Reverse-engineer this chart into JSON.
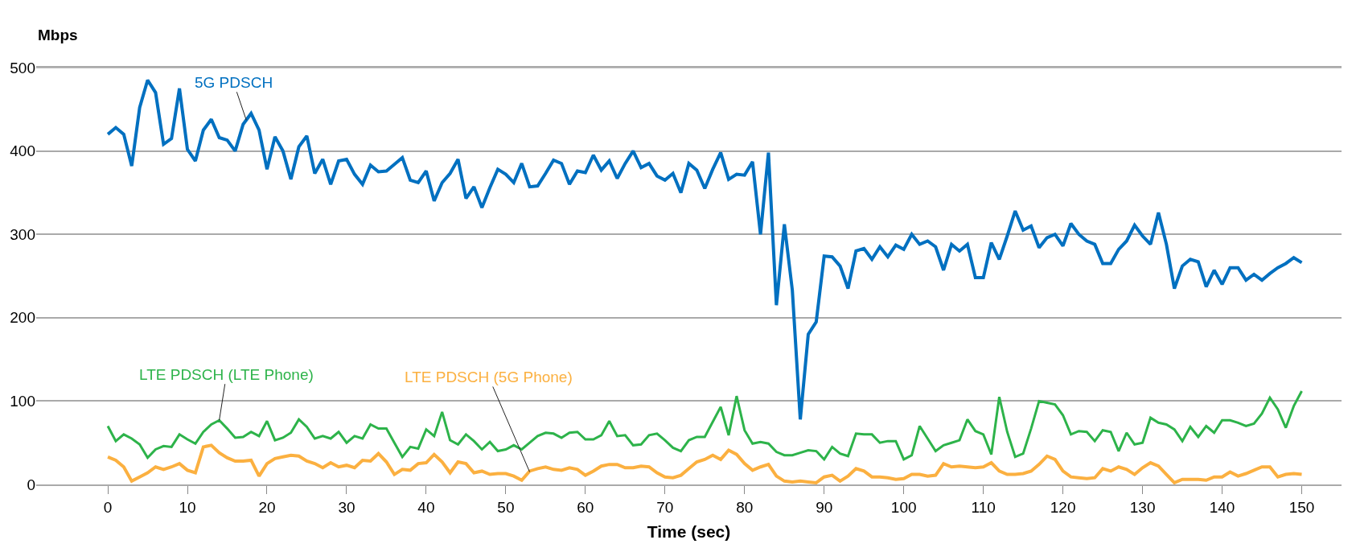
{
  "chart_data": {
    "type": "line",
    "xlabel": "Time (sec)",
    "ylabel": "Mbps",
    "xlim": [
      -9,
      155
    ],
    "xticks": [
      0,
      10,
      20,
      30,
      40,
      50,
      60,
      70,
      80,
      90,
      100,
      110,
      120,
      130,
      140,
      150
    ],
    "x": [
      0,
      1,
      2,
      3,
      4,
      5,
      6,
      7,
      8,
      9,
      10,
      11,
      12,
      13,
      14,
      15,
      16,
      17,
      18,
      19,
      20,
      21,
      22,
      23,
      24,
      25,
      26,
      27,
      28,
      29,
      30,
      31,
      32,
      33,
      34,
      35,
      36,
      37,
      38,
      39,
      40,
      41,
      42,
      43,
      44,
      45,
      46,
      47,
      48,
      49,
      50,
      51,
      52,
      53,
      54,
      55,
      56,
      57,
      58,
      59,
      60,
      61,
      62,
      63,
      64,
      65,
      66,
      67,
      68,
      69,
      70,
      71,
      72,
      73,
      74,
      75,
      76,
      77,
      78,
      79,
      80,
      81,
      82,
      83,
      84,
      85,
      86,
      87,
      88,
      89,
      90,
      91,
      92,
      93,
      94,
      95,
      96,
      97,
      98,
      99,
      100,
      101,
      102,
      103,
      104,
      105,
      106,
      107,
      108,
      109,
      110,
      111,
      112,
      113,
      114,
      115,
      116,
      117,
      118,
      119,
      120,
      121,
      122,
      123,
      124,
      125,
      126,
      127,
      128,
      129,
      130,
      131,
      132,
      133,
      134,
      135,
      136,
      137,
      138,
      139,
      140,
      141,
      142,
      143,
      144,
      145,
      146,
      147,
      148,
      149,
      150
    ],
    "ylim": [
      0,
      500
    ],
    "yticks": [
      0,
      100,
      200,
      300,
      400,
      500
    ],
    "grid": "y",
    "marker": "none",
    "line_style": "solid",
    "annotations": [
      {
        "text": "5G PDSCH",
        "x": 17.4,
        "y": 437
      },
      {
        "text": "LTE PDSCH (LTE Phone)",
        "x": 14,
        "y": 77
      },
      {
        "text": "LTE PDSCH (5G Phone)",
        "x": 53,
        "y": 15
      }
    ],
    "series": [
      {
        "color": "#0070c0",
        "values": [
          420,
          428,
          420,
          382,
          452,
          485,
          470,
          408,
          415,
          475,
          402,
          388,
          425,
          438,
          416,
          413,
          400,
          432,
          445,
          425,
          378,
          417,
          400,
          366,
          405,
          418,
          373,
          390,
          360,
          388,
          390,
          372,
          360,
          383,
          375,
          376,
          384,
          392,
          365,
          362,
          376,
          340,
          362,
          373,
          390,
          343,
          357,
          332,
          356,
          378,
          372,
          362,
          385,
          357,
          358,
          373,
          389,
          385,
          360,
          376,
          374,
          395,
          377,
          388,
          367,
          385,
          400,
          380,
          385,
          370,
          365,
          373,
          350,
          385,
          377,
          355,
          378,
          398,
          366,
          372,
          371,
          387,
          300,
          398,
          215,
          312,
          233,
          78,
          180,
          195,
          274,
          273,
          262,
          235,
          280,
          283,
          270,
          285,
          273,
          287,
          282,
          300,
          288,
          292,
          285,
          257,
          288,
          280,
          288,
          248,
          248,
          290,
          270,
          298,
          328,
          305,
          310,
          284,
          296,
          300,
          286,
          313,
          300,
          292,
          288,
          265,
          265,
          282,
          292,
          311,
          298,
          288,
          326,
          288,
          235,
          262,
          270,
          267,
          237,
          257,
          240,
          260,
          260,
          245,
          252,
          245,
          253,
          260,
          265,
          272,
          266
        ]
      },
      {
        "color": "#2db34a",
        "values": [
          70,
          52,
          60,
          55,
          48,
          32,
          42,
          46,
          45,
          60,
          54,
          49,
          63,
          72,
          77,
          67,
          56,
          57,
          63,
          58,
          76,
          53,
          56,
          62,
          78,
          69,
          55,
          58,
          55,
          63,
          50,
          58,
          55,
          72,
          67,
          67,
          50,
          33,
          45,
          43,
          66,
          58,
          87,
          53,
          48,
          60,
          52,
          42,
          51,
          40,
          42,
          47,
          42,
          50,
          58,
          62,
          61,
          56,
          62,
          63,
          54,
          54,
          59,
          76,
          58,
          59,
          47,
          48,
          59,
          61,
          53,
          44,
          40,
          53,
          57,
          57,
          75,
          93,
          59,
          106,
          65,
          49,
          51,
          49,
          39,
          35,
          35,
          38,
          41,
          40,
          30,
          45,
          37,
          34,
          61,
          60,
          60,
          50,
          52,
          52,
          30,
          35,
          70,
          55,
          40,
          47,
          50,
          53,
          78,
          64,
          60,
          36,
          105,
          63,
          33,
          37,
          67,
          100,
          98,
          96,
          83,
          60,
          64,
          63,
          52,
          65,
          63,
          40,
          62,
          48,
          50,
          80,
          74,
          72,
          66,
          52,
          69,
          57,
          70,
          62,
          77,
          77,
          74,
          70,
          73,
          85,
          104,
          90,
          68,
          94,
          112
        ]
      },
      {
        "color": "#fbb040",
        "values": [
          33,
          29,
          21,
          4,
          9,
          14,
          21,
          18,
          21,
          25,
          17,
          14,
          45,
          47,
          38,
          32,
          28,
          28,
          29,
          10,
          25,
          31,
          33,
          35,
          34,
          28,
          25,
          20,
          26,
          21,
          23,
          20,
          29,
          28,
          37,
          27,
          12,
          18,
          17,
          25,
          26,
          36,
          27,
          14,
          27,
          25,
          14,
          16,
          12,
          13,
          13,
          10,
          5,
          16,
          19,
          21,
          18,
          17,
          20,
          18,
          11,
          16,
          22,
          24,
          24,
          20,
          20,
          22,
          21,
          14,
          9,
          8,
          11,
          19,
          27,
          30,
          35,
          30,
          41,
          36,
          25,
          17,
          21,
          24,
          10,
          4,
          3,
          4,
          3,
          2,
          9,
          11,
          4,
          10,
          19,
          16,
          9,
          9,
          8,
          6,
          7,
          12,
          12,
          10,
          11,
          25,
          21,
          22,
          21,
          20,
          21,
          26,
          16,
          12,
          12,
          13,
          16,
          24,
          34,
          30,
          16,
          9,
          8,
          7,
          8,
          19,
          16,
          21,
          18,
          12,
          20,
          26,
          22,
          12,
          2,
          6,
          6,
          6,
          5,
          9,
          9,
          15,
          10,
          13,
          17,
          21,
          21,
          9,
          12,
          13,
          12
        ]
      }
    ]
  }
}
